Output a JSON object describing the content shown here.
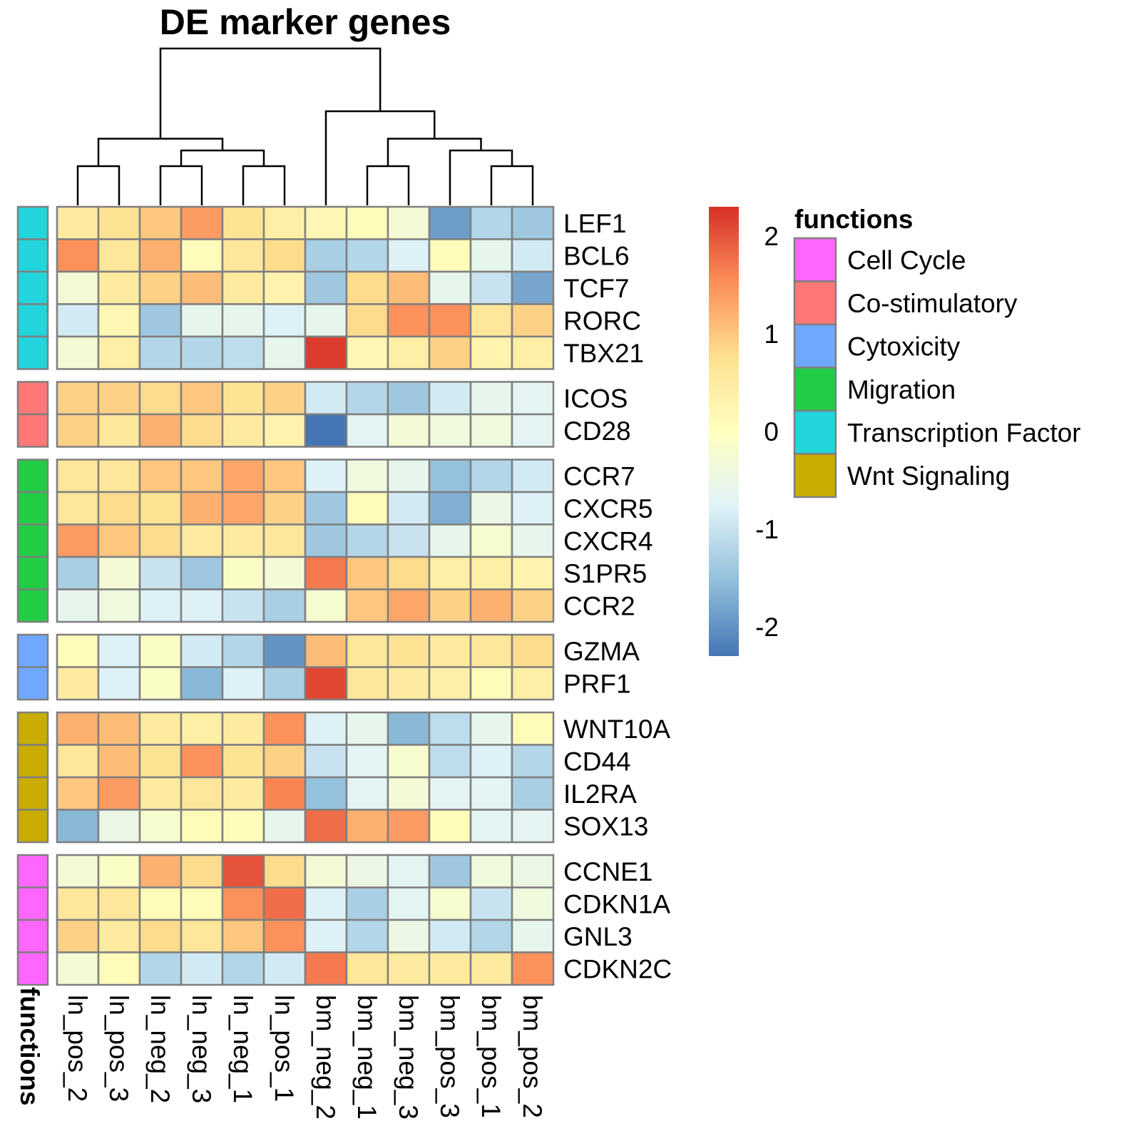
{
  "chart_data": {
    "type": "heatmap",
    "title": "DE marker genes",
    "columns": [
      "ln_pos_2",
      "ln_pos_3",
      "ln_neg_2",
      "ln_neg_3",
      "ln_neg_1",
      "ln_pos_1",
      "bm_neg_2",
      "bm_neg_1",
      "bm_neg_3",
      "bm_pos_3",
      "bm_pos_1",
      "bm_pos_2"
    ],
    "row_groups": [
      {
        "function": "Transcription Factor",
        "genes": [
          "LEF1",
          "BCL6",
          "TCF7",
          "RORC",
          "TBX21"
        ]
      },
      {
        "function": "Co-stimulatory",
        "genes": [
          "ICOS",
          "CD28"
        ]
      },
      {
        "function": "Migration",
        "genes": [
          "CCR7",
          "CXCR5",
          "CXCR4",
          "S1PR5",
          "CCR2"
        ]
      },
      {
        "function": "Cytoxicity",
        "genes": [
          "GZMA",
          "PRF1"
        ]
      },
      {
        "function": "Wnt Signaling",
        "genes": [
          "WNT10A",
          "CD44",
          "IL2RA",
          "SOX13"
        ]
      },
      {
        "function": "Cell Cycle",
        "genes": [
          "CCNE1",
          "CDKN1A",
          "GNL3",
          "CDKN2C"
        ]
      }
    ],
    "values": [
      [
        0.5,
        0.7,
        1.0,
        1.4,
        0.7,
        0.4,
        0.2,
        0.1,
        -0.3,
        -1.9,
        -1.2,
        -1.4
      ],
      [
        1.5,
        0.6,
        1.2,
        0.1,
        0.6,
        0.8,
        -1.3,
        -1.2,
        -0.8,
        0.1,
        -0.6,
        -0.9
      ],
      [
        -0.3,
        0.5,
        0.9,
        1.1,
        0.5,
        0.3,
        -1.4,
        0.8,
        1.1,
        -0.6,
        -1.0,
        -1.8
      ],
      [
        -0.9,
        0.2,
        -1.4,
        -0.6,
        -0.6,
        -0.8,
        -0.6,
        0.8,
        1.5,
        1.5,
        0.6,
        0.9
      ],
      [
        -0.3,
        0.4,
        -1.2,
        -1.2,
        -1.1,
        -0.6,
        2.2,
        0.2,
        0.4,
        0.9,
        0.3,
        0.4
      ],
      [
        0.9,
        0.9,
        0.8,
        1.0,
        0.7,
        0.9,
        -0.9,
        -1.2,
        -1.4,
        -0.9,
        -0.6,
        -0.7
      ],
      [
        0.9,
        0.6,
        1.2,
        0.8,
        0.5,
        0.3,
        -2.3,
        -0.7,
        -0.3,
        -0.4,
        -0.4,
        -0.7
      ],
      [
        0.6,
        0.6,
        1.0,
        1.0,
        1.3,
        1.0,
        -0.8,
        -0.4,
        -0.6,
        -1.5,
        -1.2,
        -0.9
      ],
      [
        0.6,
        0.8,
        0.7,
        1.2,
        1.3,
        0.9,
        -1.4,
        0.1,
        -0.9,
        -1.7,
        -0.5,
        -0.8
      ],
      [
        1.4,
        1.0,
        0.8,
        0.5,
        0.5,
        0.6,
        -1.4,
        -1.2,
        -1.0,
        -0.6,
        -0.2,
        -0.6
      ],
      [
        -1.3,
        -0.3,
        -1.0,
        -1.4,
        -0.1,
        -0.3,
        1.7,
        1.0,
        0.8,
        0.4,
        0.4,
        0.3
      ],
      [
        -0.6,
        -0.4,
        -0.8,
        -0.8,
        -1.0,
        -1.3,
        -0.2,
        1.0,
        1.3,
        0.9,
        1.2,
        0.9
      ],
      [
        0.1,
        -0.8,
        -0.1,
        -0.9,
        -1.2,
        -2.0,
        1.1,
        0.6,
        0.7,
        0.5,
        0.6,
        0.8
      ],
      [
        0.5,
        -0.8,
        -0.1,
        -1.6,
        -0.8,
        -1.3,
        2.1,
        0.6,
        0.5,
        0.4,
        0.1,
        0.4
      ],
      [
        1.2,
        1.1,
        0.5,
        0.4,
        0.5,
        1.5,
        -0.8,
        -0.6,
        -1.6,
        -1.1,
        -0.6,
        0.1
      ],
      [
        0.6,
        1.1,
        0.7,
        1.5,
        0.7,
        0.9,
        -1.0,
        -0.7,
        -0.2,
        -1.1,
        -0.8,
        -1.2
      ],
      [
        1.0,
        1.4,
        0.5,
        0.6,
        0.5,
        1.6,
        -1.5,
        -0.7,
        -0.3,
        -0.7,
        -0.7,
        -1.3
      ],
      [
        -1.6,
        -0.5,
        -0.2,
        0.1,
        0.1,
        -0.6,
        1.8,
        1.2,
        1.4,
        0.1,
        -0.7,
        -0.7
      ],
      [
        -0.3,
        -0.1,
        1.2,
        0.8,
        2.0,
        0.8,
        -0.3,
        -0.5,
        -0.7,
        -1.4,
        -0.4,
        -0.5
      ],
      [
        0.6,
        0.6,
        0.1,
        0.1,
        1.5,
        1.8,
        -0.8,
        -1.3,
        -0.7,
        -0.2,
        -1.0,
        -0.4
      ],
      [
        0.9,
        0.5,
        0.8,
        0.6,
        1.0,
        1.5,
        -0.8,
        -1.2,
        -0.5,
        -0.9,
        -1.2,
        -0.6
      ],
      [
        -0.3,
        0.1,
        -1.2,
        -0.9,
        -1.2,
        -0.9,
        1.7,
        0.6,
        0.5,
        0.5,
        0.5,
        1.5
      ]
    ],
    "dendrogram": {
      "merges": [
        [
          0,
          1,
          1.0
        ],
        [
          4,
          5,
          1.0
        ],
        [
          2,
          3,
          1.0
        ],
        [
          7,
          8,
          1.0
        ],
        [
          10,
          11,
          1.0
        ],
        [
          -2,
          -3,
          1.4
        ],
        [
          -1,
          -6,
          1.7
        ],
        [
          9,
          -5,
          1.4
        ],
        [
          -4,
          -8,
          1.7
        ],
        [
          6,
          -9,
          2.4
        ],
        [
          -7,
          -10,
          4.0
        ]
      ],
      "max_height": 4.0
    },
    "color_scale": {
      "min": -2.3,
      "max": 2.3,
      "ticks": [
        2,
        1,
        0,
        -1,
        -2
      ],
      "colors": [
        "#4575b4",
        "#91bfdb",
        "#e0f3f8",
        "#ffffbf",
        "#fee090",
        "#fc8d59",
        "#d73027"
      ]
    },
    "annotation": {
      "title": "functions",
      "legend_title": "functions",
      "colors": {
        "Cell Cycle": "#ff66ff",
        "Co-stimulatory": "#ff7777",
        "Cytoxicity": "#6fa8ff",
        "Migration": "#22cc44",
        "Transcription Factor": "#22d4dc",
        "Wnt Signaling": "#c8ad00"
      },
      "legend_order": [
        "Cell Cycle",
        "Co-stimulatory",
        "Cytoxicity",
        "Migration",
        "Transcription Factor",
        "Wnt Signaling"
      ]
    },
    "cell_border_color": "#7f7f7f"
  }
}
